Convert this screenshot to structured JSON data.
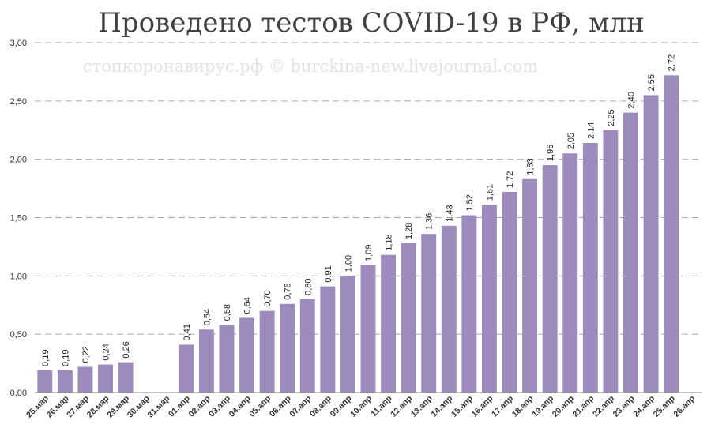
{
  "chart_data": {
    "type": "bar",
    "title": "Проведено тестов COVID-19 в РФ, млн",
    "watermark": "стопкоронавирус.рф © burckina-new.livejournal.com",
    "categories": [
      "25.мар",
      "26.мар",
      "27.мар",
      "28.мар",
      "29.мар",
      "30.мар",
      "31.мар",
      "01.апр",
      "02.апр",
      "03.апр",
      "04.апр",
      "05.апр",
      "06.апр",
      "07.апр",
      "08.апр",
      "09.апр",
      "10.апр",
      "11.апр",
      "12.апр",
      "13.апр",
      "14.апр",
      "15.апр",
      "16.апр",
      "17.апр",
      "18.апр",
      "19.апр",
      "20.апр",
      "21.апр",
      "22.апр",
      "23.апр",
      "24.апр",
      "25.апр",
      "26.апр"
    ],
    "values": [
      0.19,
      0.19,
      0.22,
      0.24,
      0.26,
      null,
      null,
      0.41,
      0.54,
      0.58,
      0.64,
      0.7,
      0.76,
      0.8,
      0.91,
      1.0,
      1.09,
      1.18,
      1.28,
      1.36,
      1.43,
      1.52,
      1.61,
      1.72,
      1.83,
      1.95,
      2.05,
      2.14,
      2.25,
      2.4,
      2.55,
      2.72,
      null
    ],
    "value_labels": [
      "0,19",
      "0,19",
      "0,22",
      "0,24",
      "0,26",
      "",
      "",
      "0,41",
      "0,54",
      "0,58",
      "0,64",
      "0,70",
      "0,76",
      "0,80",
      "0,91",
      "1,00",
      "1,09",
      "1,18",
      "1,28",
      "1,36",
      "1,43",
      "1,52",
      "1,61",
      "1,72",
      "1,83",
      "1,95",
      "2,05",
      "2,14",
      "2,25",
      "2,40",
      "2,55",
      "2,72",
      ""
    ],
    "yticks": [
      "0,00",
      "0,50",
      "1,00",
      "1,50",
      "2,00",
      "2,50",
      "3,00"
    ],
    "ylim": [
      0,
      3
    ],
    "grid": true,
    "legend": "none",
    "bar_color": "#9e8bbd"
  }
}
